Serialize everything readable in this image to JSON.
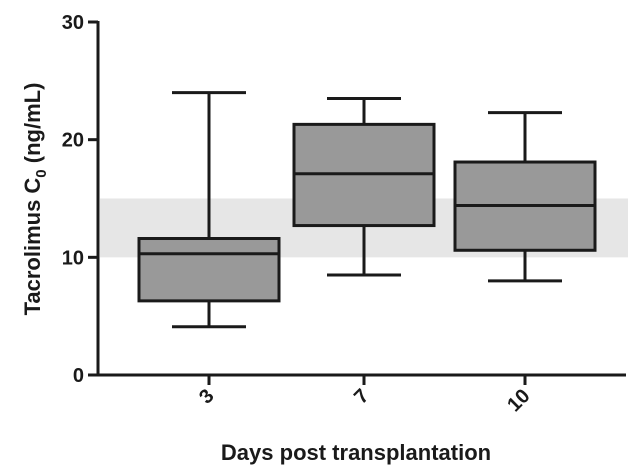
{
  "chart_data": {
    "type": "box",
    "xlabel": "Days post transplantation",
    "ylabel": {
      "prefix": "Tacrolimus C",
      "subscript": "0",
      "suffix": " (ng/mL)"
    },
    "ylim": [
      0,
      30
    ],
    "yticks": [
      "0",
      "10",
      "20",
      "30"
    ],
    "categories": [
      "3",
      "7",
      "10"
    ],
    "boxes": [
      {
        "category": "3",
        "min": 4.1,
        "q1": 6.3,
        "median": 10.3,
        "q3": 11.6,
        "max": 24.0
      },
      {
        "category": "7",
        "min": 8.5,
        "q1": 12.7,
        "median": 17.1,
        "q3": 21.3,
        "max": 23.5
      },
      {
        "category": "10",
        "min": 8.0,
        "q1": 10.6,
        "median": 14.4,
        "q3": 18.1,
        "max": 22.3
      }
    ],
    "reference_band": {
      "from": 10,
      "to": 15,
      "color": "#e6e6e6"
    },
    "box_color": "#999999",
    "line_color": "#1a1a1a",
    "grid": false,
    "legend": "none"
  }
}
